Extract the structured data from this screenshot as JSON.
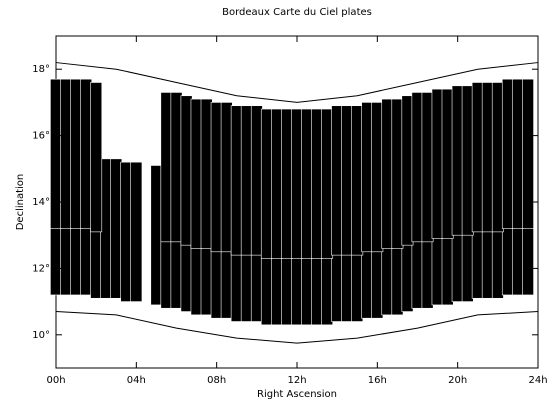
{
  "chart_data": {
    "type": "plate-coverage",
    "title": "Bordeaux Carte du Ciel plates",
    "x_label": "Right Ascension",
    "y_label": "Declination",
    "xlim": [
      0,
      24
    ],
    "ylim": [
      9,
      19
    ],
    "xticks": [
      {
        "value": 0,
        "label": "00h"
      },
      {
        "value": 4,
        "label": "04h"
      },
      {
        "value": 8,
        "label": "08h"
      },
      {
        "value": 12,
        "label": "12h"
      },
      {
        "value": 16,
        "label": "16h"
      },
      {
        "value": 20,
        "label": "20h"
      },
      {
        "value": 24,
        "label": "24h"
      }
    ],
    "yticks": [
      {
        "value": 10,
        "label": "10°"
      },
      {
        "value": 12,
        "label": "12°"
      },
      {
        "value": 14,
        "label": "14°"
      },
      {
        "value": 16,
        "label": "16°"
      },
      {
        "value": 18,
        "label": "18°"
      }
    ],
    "plate_color": "#000000",
    "plates": {
      "ra": [
        0,
        0.5,
        1,
        1.5,
        2,
        2.5,
        3,
        3.5,
        4,
        4.5,
        5,
        5.5,
        6,
        6.5,
        7,
        7.5,
        8,
        8.5,
        9,
        9.5,
        10,
        10.5,
        11,
        11.5,
        12,
        12.5,
        13,
        13.5,
        14,
        14.5,
        15,
        15.5,
        16,
        16.5,
        17,
        17.5,
        18,
        18.5,
        19,
        19.5,
        20,
        20.5,
        21,
        21.5,
        22,
        22.5,
        23,
        23.5
      ],
      "upper": {
        "max": [
          17.7,
          17.7,
          17.7,
          17.7,
          17.6,
          null,
          null,
          null,
          null,
          null,
          null,
          17.3,
          17.3,
          17.2,
          17.1,
          17.1,
          17.0,
          17.0,
          16.9,
          16.9,
          16.9,
          16.8,
          16.8,
          16.8,
          16.8,
          16.8,
          16.8,
          16.8,
          16.9,
          16.9,
          16.9,
          17.0,
          17.0,
          17.1,
          17.1,
          17.2,
          17.3,
          17.3,
          17.4,
          17.4,
          17.5,
          17.5,
          17.6,
          17.6,
          17.6,
          17.7,
          17.7,
          17.7
        ],
        "min": [
          13.2,
          13.2,
          13.2,
          13.2,
          13.1,
          null,
          null,
          null,
          null,
          null,
          null,
          12.8,
          12.8,
          12.7,
          12.6,
          12.6,
          12.5,
          12.5,
          12.4,
          12.4,
          12.4,
          12.3,
          12.3,
          12.3,
          12.3,
          12.3,
          12.3,
          12.3,
          12.4,
          12.4,
          12.4,
          12.5,
          12.5,
          12.6,
          12.6,
          12.7,
          12.8,
          12.8,
          12.9,
          12.9,
          13.0,
          13.0,
          13.1,
          13.1,
          13.1,
          13.2,
          13.2,
          13.2
        ]
      },
      "lower": {
        "max": [
          15.4,
          15.4,
          15.4,
          15.4,
          15.3,
          15.3,
          15.3,
          15.2,
          15.2,
          null,
          15.1,
          15.0,
          15.0,
          14.9,
          14.8,
          14.8,
          14.7,
          14.7,
          14.6,
          14.6,
          14.6,
          14.5,
          14.5,
          14.5,
          14.5,
          14.5,
          14.5,
          14.5,
          14.6,
          14.6,
          14.6,
          14.7,
          14.7,
          14.8,
          14.8,
          14.9,
          15.0,
          15.0,
          15.1,
          15.1,
          15.2,
          15.2,
          15.3,
          15.3,
          15.3,
          15.4,
          15.4,
          15.4
        ],
        "min": [
          11.2,
          11.2,
          11.2,
          11.2,
          11.1,
          11.1,
          11.1,
          11.0,
          11.0,
          null,
          10.9,
          10.8,
          10.8,
          10.7,
          10.6,
          10.6,
          10.5,
          10.5,
          10.4,
          10.4,
          10.4,
          10.3,
          10.3,
          10.3,
          10.3,
          10.3,
          10.3,
          10.3,
          10.4,
          10.4,
          10.4,
          10.5,
          10.5,
          10.6,
          10.6,
          10.7,
          10.8,
          10.8,
          10.9,
          10.9,
          11.0,
          11.0,
          11.1,
          11.1,
          11.1,
          11.2,
          11.2,
          11.2
        ]
      }
    },
    "limits": {
      "x": [
        0,
        3,
        6,
        9,
        12,
        15,
        18,
        21,
        24
      ],
      "upper": [
        18.2,
        18.0,
        17.6,
        17.2,
        17.0,
        17.2,
        17.6,
        18.0,
        18.2
      ],
      "lower": [
        10.7,
        10.6,
        10.2,
        9.9,
        9.75,
        9.9,
        10.2,
        10.6,
        10.7
      ]
    }
  }
}
